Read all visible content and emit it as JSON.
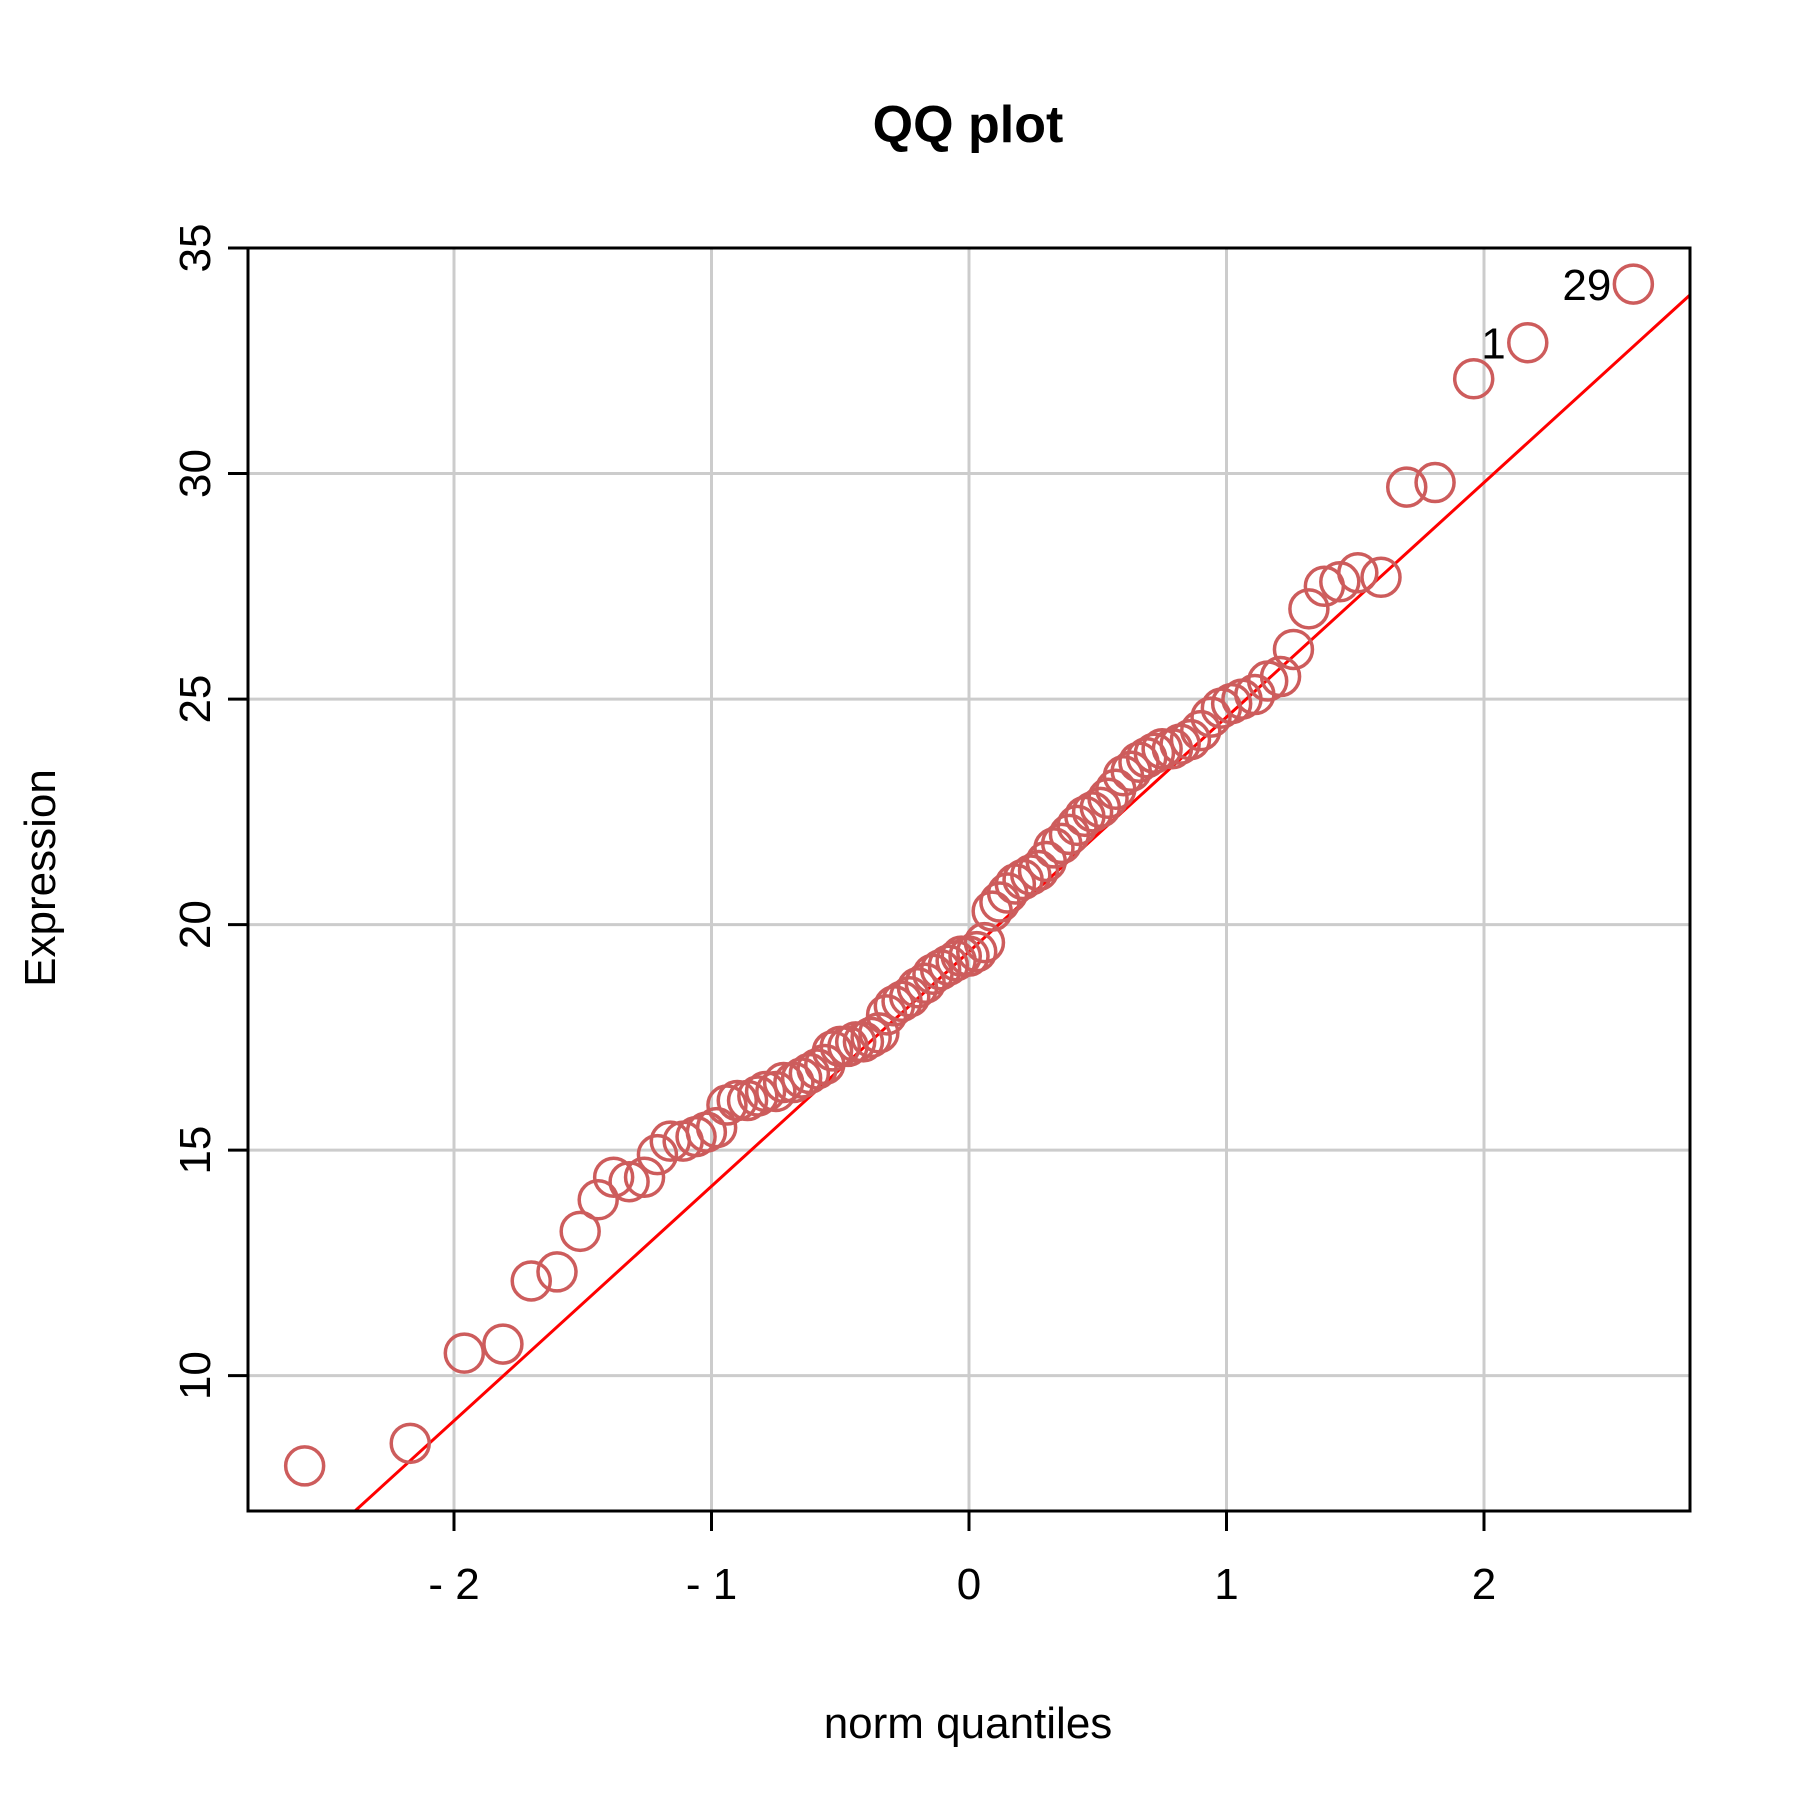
{
  "chart_data": {
    "type": "scatter",
    "title": "QQ plot",
    "xlabel": "norm quantiles",
    "ylabel": "Expression",
    "xlim": [
      -2.8,
      2.8
    ],
    "ylim": [
      7,
      35
    ],
    "xticks": [
      -2,
      -1,
      0,
      1,
      2
    ],
    "xtick_labels": [
      "- 2",
      "- 1",
      "0",
      "1",
      "2"
    ],
    "yticks": [
      10,
      15,
      20,
      25,
      30,
      35
    ],
    "ytick_labels": [
      "10",
      "15",
      "20",
      "25",
      "30",
      "35"
    ],
    "grid": true,
    "marker": "open-circle",
    "point_color": "#cd5c5c",
    "line_color": "#ff0000",
    "reference_line": {
      "intercept": 19.4,
      "slope": 5.2
    },
    "labeled_points": [
      {
        "label": "29",
        "x": 2.58,
        "y": 34.2
      },
      {
        "label": "1",
        "x": 2.17,
        "y": 32.9
      }
    ],
    "points": [
      [
        -2.58,
        8.0
      ],
      [
        -2.17,
        8.5
      ],
      [
        -1.96,
        10.5
      ],
      [
        -1.81,
        10.7
      ],
      [
        -1.7,
        12.1
      ],
      [
        -1.6,
        12.3
      ],
      [
        -1.51,
        13.2
      ],
      [
        -1.44,
        13.9
      ],
      [
        -1.38,
        14.4
      ],
      [
        -1.32,
        14.3
      ],
      [
        -1.26,
        14.4
      ],
      [
        -1.21,
        14.9
      ],
      [
        -1.16,
        15.2
      ],
      [
        -1.11,
        15.2
      ],
      [
        -1.06,
        15.3
      ],
      [
        -1.02,
        15.4
      ],
      [
        -0.98,
        15.5
      ],
      [
        -0.94,
        16.0
      ],
      [
        -0.9,
        16.1
      ],
      [
        -0.86,
        16.1
      ],
      [
        -0.82,
        16.2
      ],
      [
        -0.79,
        16.3
      ],
      [
        -0.75,
        16.3
      ],
      [
        -0.72,
        16.5
      ],
      [
        -0.68,
        16.5
      ],
      [
        -0.65,
        16.6
      ],
      [
        -0.62,
        16.7
      ],
      [
        -0.59,
        16.8
      ],
      [
        -0.56,
        16.9
      ],
      [
        -0.53,
        17.2
      ],
      [
        -0.5,
        17.3
      ],
      [
        -0.47,
        17.3
      ],
      [
        -0.44,
        17.4
      ],
      [
        -0.41,
        17.4
      ],
      [
        -0.38,
        17.5
      ],
      [
        -0.35,
        17.6
      ],
      [
        -0.32,
        18.0
      ],
      [
        -0.29,
        18.2
      ],
      [
        -0.26,
        18.3
      ],
      [
        -0.23,
        18.4
      ],
      [
        -0.2,
        18.6
      ],
      [
        -0.17,
        18.7
      ],
      [
        -0.14,
        18.9
      ],
      [
        -0.11,
        19.0
      ],
      [
        -0.08,
        19.1
      ],
      [
        -0.05,
        19.2
      ],
      [
        -0.03,
        19.3
      ],
      [
        0.0,
        19.3
      ],
      [
        0.03,
        19.4
      ],
      [
        0.06,
        19.6
      ],
      [
        0.09,
        20.3
      ],
      [
        0.12,
        20.5
      ],
      [
        0.15,
        20.7
      ],
      [
        0.18,
        20.9
      ],
      [
        0.21,
        21.0
      ],
      [
        0.24,
        21.1
      ],
      [
        0.27,
        21.2
      ],
      [
        0.3,
        21.4
      ],
      [
        0.33,
        21.7
      ],
      [
        0.36,
        21.8
      ],
      [
        0.39,
        22.0
      ],
      [
        0.42,
        22.2
      ],
      [
        0.45,
        22.4
      ],
      [
        0.48,
        22.5
      ],
      [
        0.51,
        22.6
      ],
      [
        0.54,
        22.8
      ],
      [
        0.57,
        23.0
      ],
      [
        0.6,
        23.3
      ],
      [
        0.63,
        23.4
      ],
      [
        0.66,
        23.6
      ],
      [
        0.69,
        23.7
      ],
      [
        0.72,
        23.8
      ],
      [
        0.75,
        23.9
      ],
      [
        0.79,
        23.9
      ],
      [
        0.82,
        24.0
      ],
      [
        0.86,
        24.1
      ],
      [
        0.9,
        24.3
      ],
      [
        0.94,
        24.6
      ],
      [
        0.98,
        24.8
      ],
      [
        1.02,
        24.9
      ],
      [
        1.06,
        25.0
      ],
      [
        1.11,
        25.1
      ],
      [
        1.16,
        25.4
      ],
      [
        1.21,
        25.5
      ],
      [
        1.26,
        26.1
      ],
      [
        1.32,
        27.0
      ],
      [
        1.38,
        27.5
      ],
      [
        1.44,
        27.6
      ],
      [
        1.51,
        27.8
      ],
      [
        1.6,
        27.7
      ],
      [
        1.7,
        29.7
      ],
      [
        1.81,
        29.8
      ],
      [
        1.96,
        32.1
      ],
      [
        2.17,
        32.9
      ],
      [
        2.58,
        34.2
      ]
    ]
  }
}
